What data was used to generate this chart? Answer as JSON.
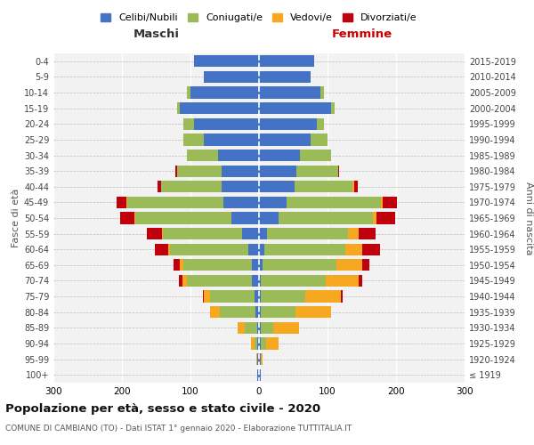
{
  "age_groups": [
    "100+",
    "95-99",
    "90-94",
    "85-89",
    "80-84",
    "75-79",
    "70-74",
    "65-69",
    "60-64",
    "55-59",
    "50-54",
    "45-49",
    "40-44",
    "35-39",
    "30-34",
    "25-29",
    "20-24",
    "15-19",
    "10-14",
    "5-9",
    "0-4"
  ],
  "birth_years": [
    "≤ 1919",
    "1920-1924",
    "1925-1929",
    "1930-1934",
    "1935-1939",
    "1940-1944",
    "1945-1949",
    "1950-1954",
    "1955-1959",
    "1960-1964",
    "1965-1969",
    "1970-1974",
    "1975-1979",
    "1980-1984",
    "1985-1989",
    "1990-1994",
    "1995-1999",
    "2000-2004",
    "2005-2009",
    "2010-2014",
    "2015-2019"
  ],
  "colors": {
    "celibe": "#4472C4",
    "coniugato": "#9BBB59",
    "vedovo": "#F5A820",
    "divorziato": "#C0000C"
  },
  "males": {
    "celibe": [
      2,
      2,
      2,
      3,
      5,
      7,
      10,
      10,
      15,
      25,
      40,
      52,
      55,
      55,
      60,
      80,
      95,
      115,
      100,
      80,
      95
    ],
    "coniugato": [
      0,
      1,
      5,
      18,
      52,
      65,
      95,
      100,
      115,
      115,
      140,
      140,
      88,
      65,
      45,
      30,
      15,
      5,
      5,
      0,
      0
    ],
    "vedovo": [
      0,
      1,
      5,
      10,
      15,
      8,
      7,
      5,
      2,
      2,
      2,
      1,
      0,
      0,
      0,
      0,
      0,
      0,
      0,
      0,
      0
    ],
    "divorziato": [
      0,
      0,
      0,
      0,
      0,
      2,
      5,
      10,
      20,
      22,
      20,
      15,
      5,
      2,
      0,
      0,
      0,
      0,
      0,
      0,
      0
    ]
  },
  "females": {
    "nubile": [
      2,
      2,
      2,
      3,
      3,
      3,
      3,
      5,
      8,
      12,
      28,
      40,
      52,
      55,
      60,
      75,
      85,
      105,
      90,
      75,
      80
    ],
    "coniugata": [
      0,
      1,
      8,
      18,
      50,
      65,
      95,
      108,
      118,
      118,
      138,
      138,
      85,
      60,
      45,
      25,
      10,
      5,
      5,
      0,
      0
    ],
    "vedova": [
      0,
      2,
      18,
      38,
      52,
      52,
      48,
      38,
      25,
      15,
      5,
      3,
      2,
      0,
      0,
      0,
      0,
      0,
      0,
      0,
      0
    ],
    "divorziata": [
      0,
      0,
      0,
      0,
      0,
      2,
      5,
      10,
      25,
      25,
      28,
      20,
      5,
      2,
      0,
      0,
      0,
      0,
      0,
      0,
      0
    ]
  },
  "title": "Popolazione per età, sesso e stato civile - 2020",
  "subtitle": "COMUNE DI CAMBIANO (TO) - Dati ISTAT 1° gennaio 2020 - Elaborazione TUTTITALIA.IT",
  "label_maschi": "Maschi",
  "label_femmine": "Femmine",
  "ylabel_left": "Fasce di età",
  "ylabel_right": "Anni di nascita",
  "xlim": 300,
  "xticks": [
    -300,
    -200,
    -100,
    0,
    100,
    200,
    300
  ],
  "xticklabels": [
    "300",
    "200",
    "100",
    "0",
    "100",
    "200",
    "300"
  ],
  "legend_labels": [
    "Celibi/Nubili",
    "Coniugati/e",
    "Vedovi/e",
    "Divorziati/e"
  ],
  "bg_color": "#ffffff",
  "plot_bg": "#f2f2f2"
}
